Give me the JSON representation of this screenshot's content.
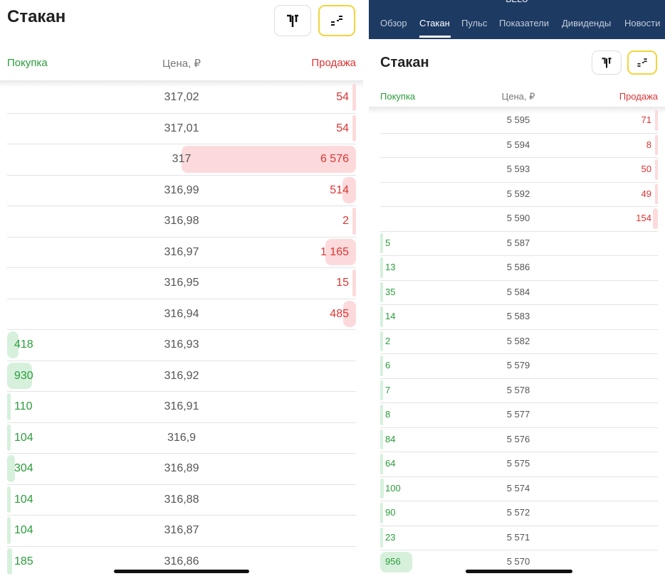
{
  "panels": [
    {
      "title": "Стакан",
      "header": {
        "buy": "Покупка",
        "price": "Цена, ₽",
        "sell": "Продажа"
      },
      "rows": [
        {
          "price": "317,02",
          "sell": "54"
        },
        {
          "price": "317,01",
          "sell": "54"
        },
        {
          "price": "317",
          "sell": "6 576"
        },
        {
          "price": "316,99",
          "sell": "514"
        },
        {
          "price": "316,98",
          "sell": "2"
        },
        {
          "price": "316,97",
          "sell": "1 165"
        },
        {
          "price": "316,95",
          "sell": "15"
        },
        {
          "price": "316,94",
          "sell": "485"
        },
        {
          "price": "316,93",
          "buy": "418"
        },
        {
          "price": "316,92",
          "buy": "930"
        },
        {
          "price": "316,91",
          "buy": "110"
        },
        {
          "price": "316,9",
          "buy": "104"
        },
        {
          "price": "316,89",
          "buy": "304"
        },
        {
          "price": "316,88",
          "buy": "104"
        },
        {
          "price": "316,87",
          "buy": "104"
        },
        {
          "price": "316,86",
          "buy": "185"
        }
      ]
    },
    {
      "ticker": "BELU",
      "tabs": [
        "Обзор",
        "Стакан",
        "Пульс",
        "Показатели",
        "Дивиденды",
        "Новости"
      ],
      "active_tab": 1,
      "title": "Стакан",
      "header": {
        "buy": "Покупка",
        "price": "Цена, ₽",
        "sell": "Продажа"
      },
      "rows": [
        {
          "price": "5 595",
          "sell": "71"
        },
        {
          "price": "5 594",
          "sell": "8"
        },
        {
          "price": "5 593",
          "sell": "50"
        },
        {
          "price": "5 592",
          "sell": "49"
        },
        {
          "price": "5 590",
          "sell": "154"
        },
        {
          "price": "5 587",
          "buy": "5"
        },
        {
          "price": "5 586",
          "buy": "13"
        },
        {
          "price": "5 584",
          "buy": "35"
        },
        {
          "price": "5 583",
          "buy": "14"
        },
        {
          "price": "5 582",
          "buy": "2"
        },
        {
          "price": "5 579",
          "buy": "6"
        },
        {
          "price": "5 578",
          "buy": "7"
        },
        {
          "price": "5 577",
          "buy": "8"
        },
        {
          "price": "5 576",
          "buy": "84"
        },
        {
          "price": "5 575",
          "buy": "64"
        },
        {
          "price": "5 574",
          "buy": "100"
        },
        {
          "price": "5 572",
          "buy": "90"
        },
        {
          "price": "5 571",
          "buy": "23"
        },
        {
          "price": "5 570",
          "buy": "956"
        }
      ]
    }
  ]
}
